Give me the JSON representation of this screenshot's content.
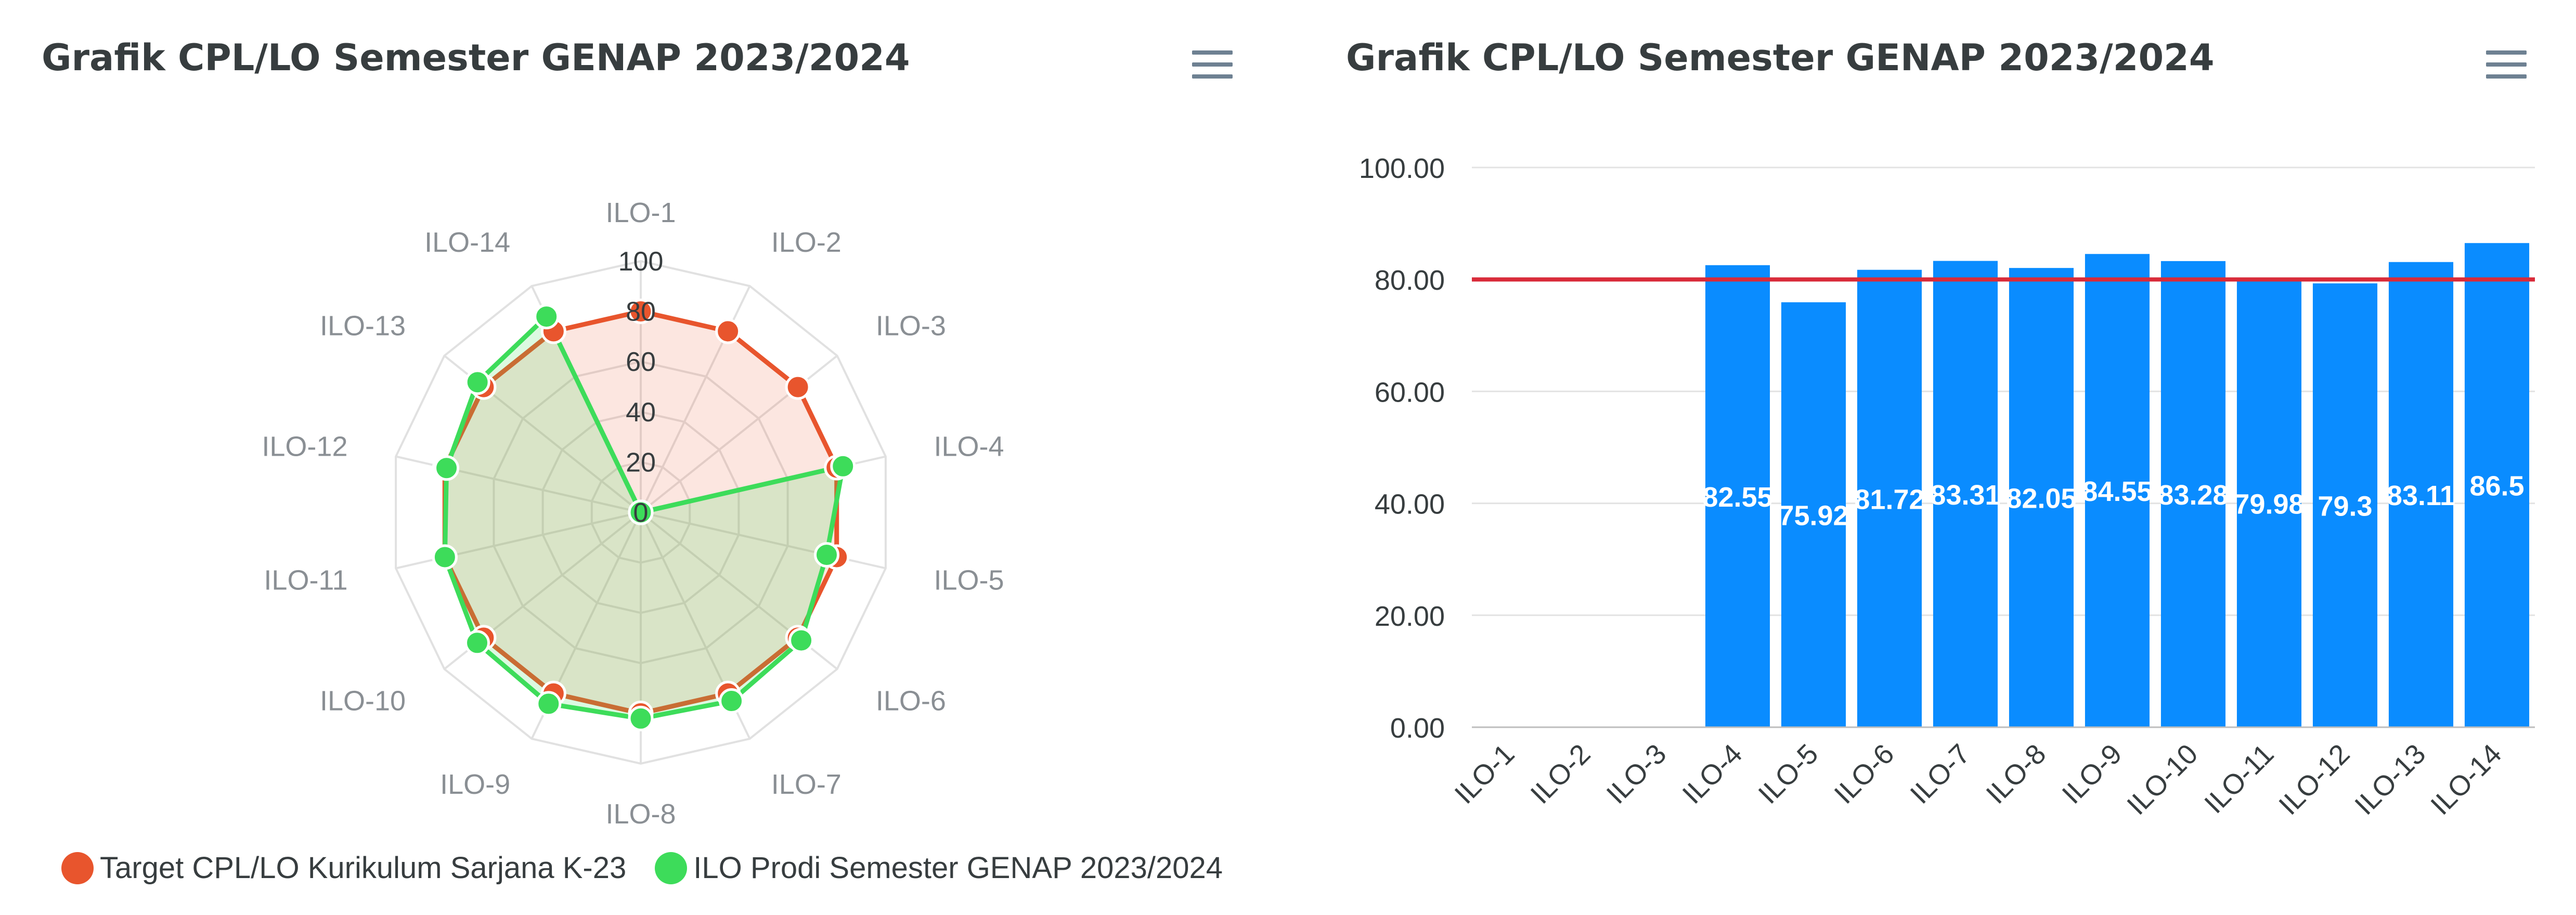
{
  "colors": {
    "target": "#e8552d",
    "actual": "#3ddc5a",
    "bar": "#0a8cff",
    "threshold": "#d92b3a"
  },
  "icons": {
    "menu": "hamburger-menu-icon"
  },
  "radar": {
    "title": "Grafik CPL/LO Semester GENAP 2023/2024",
    "legend": [
      {
        "label": "Target CPL/LO Kurikulum Sarjana K-23",
        "color": "#e8552d"
      },
      {
        "label": "ILO Prodi Semester GENAP 2023/2024",
        "color": "#3ddc5a"
      }
    ]
  },
  "bar": {
    "title": "Grafik CPL/LO Semester GENAP 2023/2024"
  },
  "chart_data": [
    {
      "type": "radar",
      "categories": [
        "ILO-1",
        "ILO-2",
        "ILO-3",
        "ILO-4",
        "ILO-5",
        "ILO-6",
        "ILO-7",
        "ILO-8",
        "ILO-9",
        "ILO-10",
        "ILO-11",
        "ILO-12",
        "ILO-13",
        "ILO-14"
      ],
      "radial_ticks": [
        "0",
        "20",
        "40",
        "60",
        "80",
        "100"
      ],
      "ylim": [
        0,
        100
      ],
      "series": [
        {
          "name": "Target CPL/LO Kurikulum Sarjana K-23",
          "values": [
            80,
            80,
            80,
            80,
            80,
            80,
            80,
            80,
            80,
            80,
            80,
            80,
            80,
            80
          ]
        },
        {
          "name": "ILO Prodi Semester GENAP 2023/2024",
          "values": [
            0,
            0,
            0,
            82.55,
            75.92,
            81.72,
            83.31,
            82.05,
            84.55,
            83.28,
            79.98,
            79.3,
            83.11,
            86.5
          ]
        }
      ]
    },
    {
      "type": "bar",
      "categories": [
        "ILO-1",
        "ILO-2",
        "ILO-3",
        "ILO-4",
        "ILO-5",
        "ILO-6",
        "ILO-7",
        "ILO-8",
        "ILO-9",
        "ILO-10",
        "ILO-11",
        "ILO-12",
        "ILO-13",
        "ILO-14"
      ],
      "values": [
        0,
        0,
        0,
        82.55,
        75.92,
        81.72,
        83.31,
        82.05,
        84.55,
        83.28,
        79.98,
        79.3,
        83.11,
        86.5
      ],
      "data_labels": [
        null,
        null,
        null,
        "82.55",
        "75.92",
        "81.72",
        "83.31",
        "82.05",
        "84.55",
        "83.28",
        "79.98",
        "79.3",
        "83.11",
        "86.5"
      ],
      "y_ticks": [
        "0.00",
        "20.00",
        "40.00",
        "60.00",
        "80.00",
        "100.00"
      ],
      "ylim": [
        0,
        100
      ],
      "threshold": 80,
      "grid": true
    }
  ]
}
